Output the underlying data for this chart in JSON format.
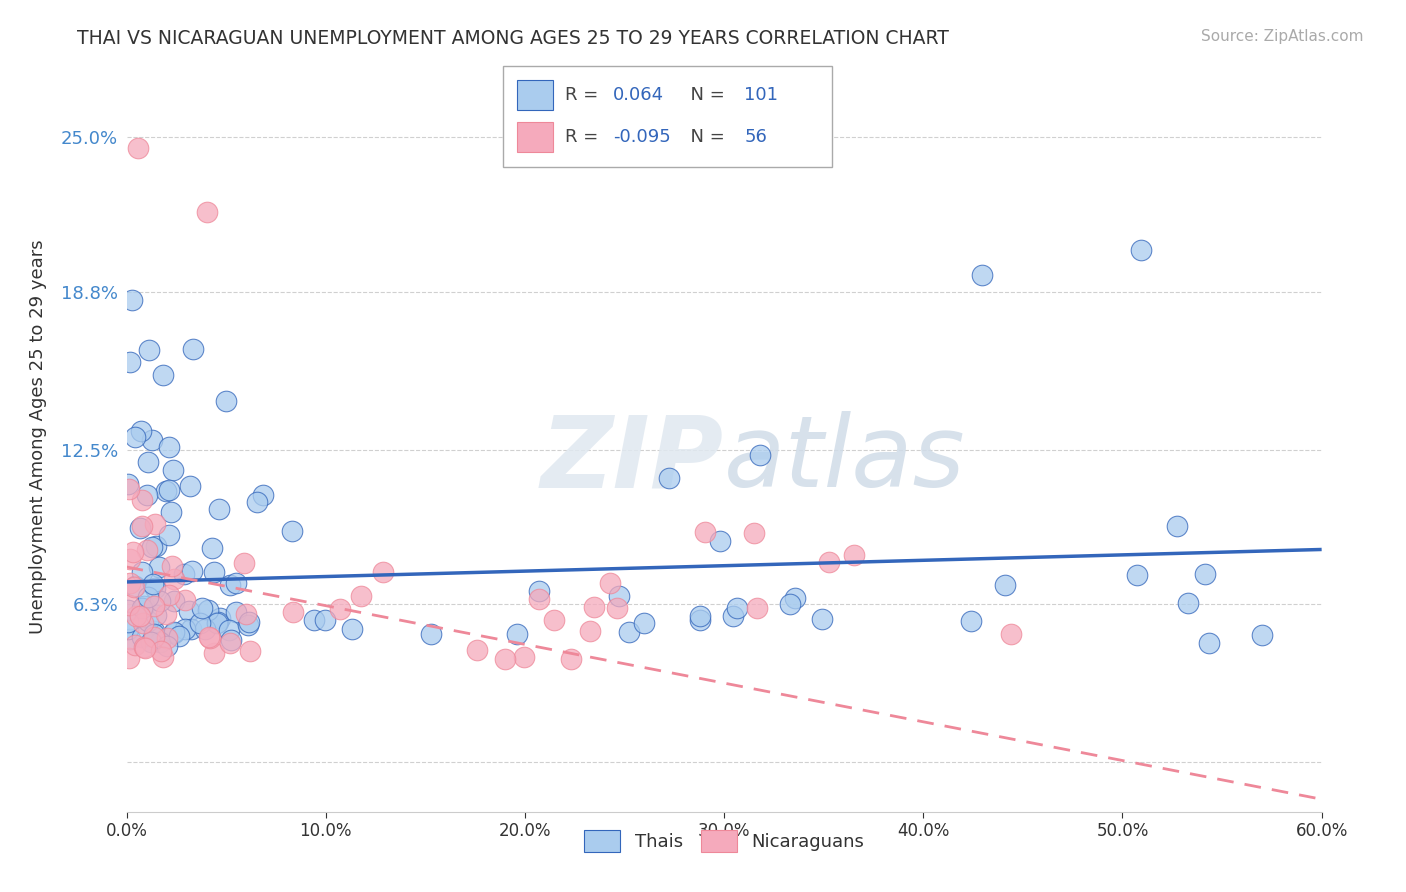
{
  "title": "THAI VS NICARAGUAN UNEMPLOYMENT AMONG AGES 25 TO 29 YEARS CORRELATION CHART",
  "source": "Source: ZipAtlas.com",
  "ylabel": "Unemployment Among Ages 25 to 29 years",
  "xlim": [
    0.0,
    0.6
  ],
  "ylim": [
    -0.02,
    0.28
  ],
  "xticks": [
    0.0,
    0.1,
    0.2,
    0.3,
    0.4,
    0.5,
    0.6
  ],
  "xticklabels": [
    "0.0%",
    "10.0%",
    "20.0%",
    "30.0%",
    "40.0%",
    "50.0%",
    "60.0%"
  ],
  "yticks": [
    0.0,
    0.063,
    0.125,
    0.188,
    0.25
  ],
  "yticklabels": [
    "",
    "6.3%",
    "12.5%",
    "18.8%",
    "25.0%"
  ],
  "grid_color": "#d0d0d0",
  "background_color": "#ffffff",
  "thai_color": "#aaccee",
  "nicaraguan_color": "#f5aabc",
  "thai_line_color": "#3366bb",
  "nicaraguan_line_color": "#ee8899",
  "thai_R": 0.064,
  "thai_N": 101,
  "nicaraguan_R": -0.095,
  "nicaraguan_N": 56,
  "thai_trend_x0": 0.0,
  "thai_trend_y0": 0.072,
  "thai_trend_x1": 0.6,
  "thai_trend_y1": 0.085,
  "nic_trend_x0": 0.0,
  "nic_trend_y0": 0.078,
  "nic_trend_x1": 0.6,
  "nic_trend_y1": -0.015
}
